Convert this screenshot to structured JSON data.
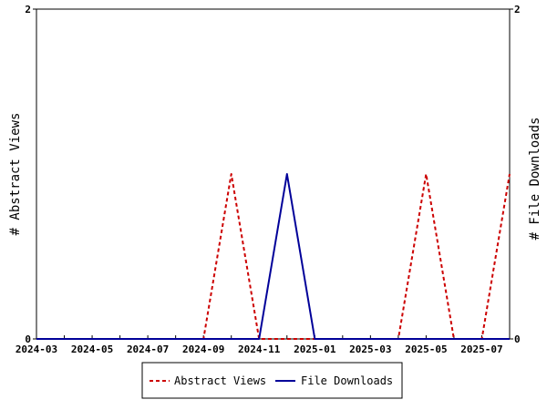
{
  "chart_data": {
    "type": "line",
    "x_ticks": [
      "2024-03",
      "2024-05",
      "2024-07",
      "2024-09",
      "2024-11",
      "2025-01",
      "2025-03",
      "2025-05",
      "2025-07"
    ],
    "x_range": [
      "2024-03",
      "2025-08"
    ],
    "y_left_label": "# Abstract Views",
    "y_right_label": "# File Downloads",
    "y_left_ticks": [
      0,
      2
    ],
    "y_right_ticks": [
      0,
      2
    ],
    "ylim": [
      0,
      2
    ],
    "grid": false,
    "legend_position": "bottom",
    "x": [
      "2024-03",
      "2024-04",
      "2024-05",
      "2024-06",
      "2024-07",
      "2024-08",
      "2024-09",
      "2024-10",
      "2024-11",
      "2024-12",
      "2025-01",
      "2025-02",
      "2025-03",
      "2025-04",
      "2025-05",
      "2025-06",
      "2025-07",
      "2025-08"
    ],
    "series": [
      {
        "name": "Abstract Views",
        "axis": "left",
        "color": "#cc0000",
        "dash": "dashed",
        "values": [
          0,
          0,
          0,
          0,
          0,
          0,
          0,
          1,
          0,
          0,
          0,
          0,
          0,
          0,
          1,
          0,
          0,
          1
        ]
      },
      {
        "name": "File Downloads",
        "axis": "right",
        "color": "#000099",
        "dash": "solid",
        "values": [
          0,
          0,
          0,
          0,
          0,
          0,
          0,
          0,
          0,
          1,
          0,
          0,
          0,
          0,
          0,
          0,
          0,
          0
        ]
      }
    ]
  }
}
